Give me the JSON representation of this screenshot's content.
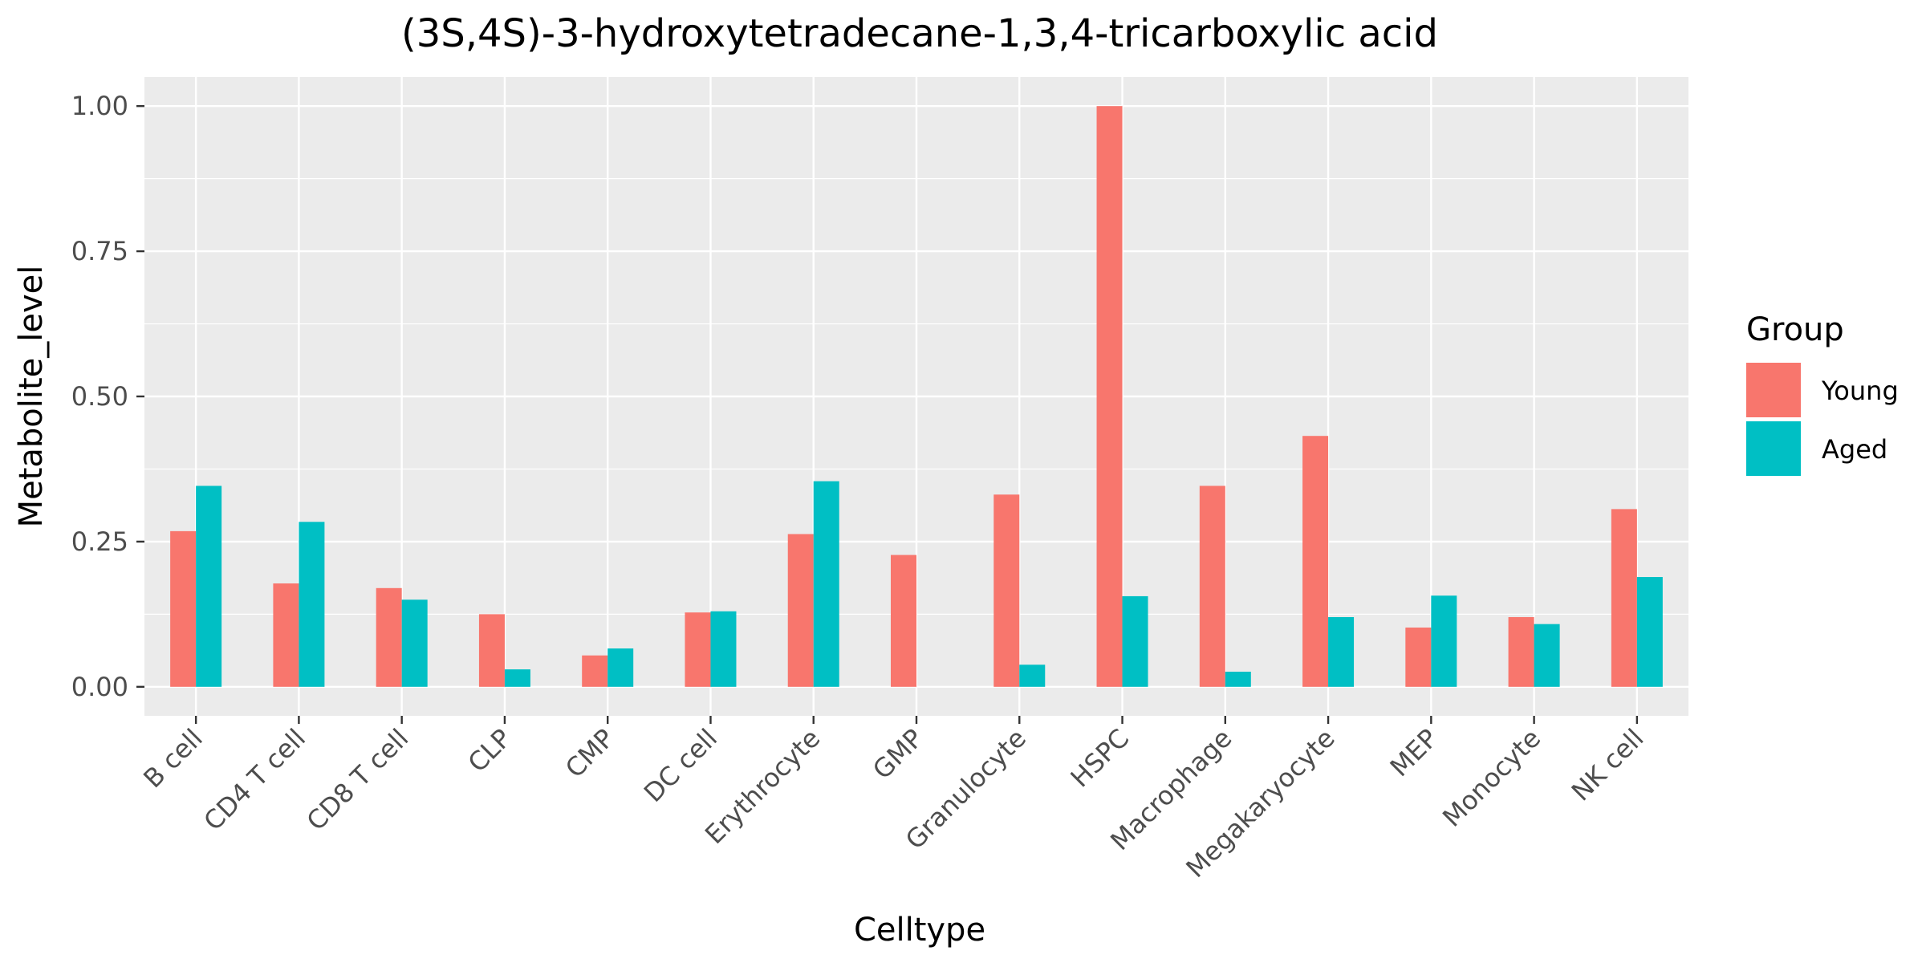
{
  "chart_data": {
    "type": "bar",
    "title": "(3S,4S)-3-hydroxytetradecane-1,3,4-tricarboxylic acid",
    "xlabel": "Celltype",
    "ylabel": "Metabolite_level",
    "ylim": [
      -0.05,
      1.05
    ],
    "yticks": [
      0.0,
      0.25,
      0.5,
      0.75,
      1.0
    ],
    "ytick_labels": [
      "0.00",
      "0.25",
      "0.50",
      "0.75",
      "1.00"
    ],
    "grid": true,
    "legend": {
      "title": "Group",
      "position": "right"
    },
    "categories": [
      "B cell",
      "CD4 T cell",
      "CD8 T cell",
      "CLP",
      "CMP",
      "DC cell",
      "Erythrocyte",
      "GMP",
      "Granulocyte",
      "HSPC",
      "Macrophage",
      "Megakaryocyte",
      "MEP",
      "Monocyte",
      "NK cell"
    ],
    "series": [
      {
        "name": "Young",
        "color": "#F8766D",
        "values": [
          0.268,
          0.178,
          0.17,
          0.125,
          0.054,
          0.128,
          0.263,
          0.227,
          0.331,
          1.0,
          0.346,
          0.432,
          0.102,
          0.12,
          0.306
        ]
      },
      {
        "name": "Aged",
        "color": "#00BFC4",
        "values": [
          0.346,
          0.284,
          0.15,
          0.03,
          0.066,
          0.13,
          0.354,
          0.0,
          0.038,
          0.156,
          0.026,
          0.12,
          0.157,
          0.108,
          0.189
        ]
      }
    ],
    "panel_background": "#EBEBEB",
    "gridline_color": "#FFFFFF"
  }
}
